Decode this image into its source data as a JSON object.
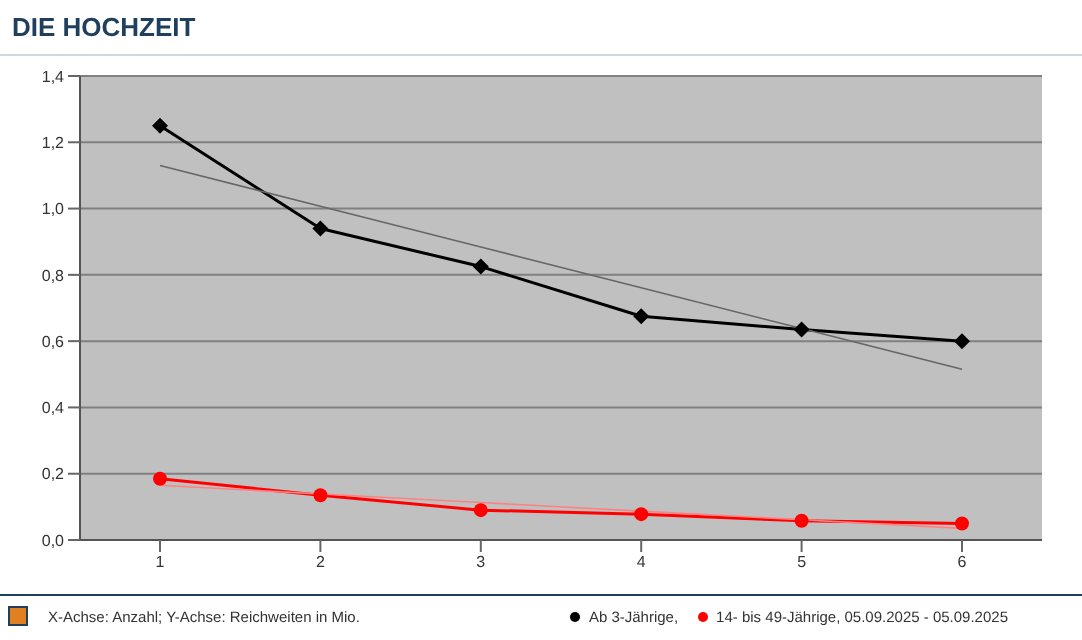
{
  "chart_data": {
    "type": "line",
    "title": "DIE HOCHZEIT",
    "annotations": [
      "X-Achse: Anzahl; Y-Achse: Reichweiten in Mio."
    ],
    "categories": [
      "1",
      "2",
      "3",
      "4",
      "5",
      "6"
    ],
    "series": [
      {
        "name": "Ab 3-Jährige,",
        "color": "#000000",
        "marker": "diamond",
        "values": [
          1.25,
          0.94,
          0.825,
          0.675,
          0.635,
          0.6
        ]
      },
      {
        "name": "14- bis 49-Jährige, 05.09.2025 - 05.09.2025",
        "color": "#ff0000",
        "marker": "circle",
        "values": [
          0.185,
          0.135,
          0.09,
          0.078,
          0.058,
          0.05
        ]
      },
      {
        "color": "#666666",
        "marker": "none",
        "values": [
          1.13,
          1.007,
          0.884,
          0.761,
          0.638,
          0.515
        ]
      },
      {
        "color": "#ff8080",
        "marker": "none",
        "values": [
          0.165,
          0.139,
          0.113,
          0.087,
          0.061,
          0.035
        ]
      }
    ],
    "ylim": [
      0,
      1.4
    ],
    "yticks": [
      {
        "value": 0,
        "label": "0,0"
      },
      {
        "value": 0.2,
        "label": "0,2"
      },
      {
        "value": 0.4,
        "label": "0,4"
      },
      {
        "value": 0.6,
        "label": "0,6"
      },
      {
        "value": 0.8,
        "label": "0,8"
      },
      {
        "value": 1.0,
        "label": "1,0"
      },
      {
        "value": 1.2,
        "label": "1,2"
      },
      {
        "value": 1.4,
        "label": "1,4"
      }
    ],
    "grid": "y",
    "legend": "bottom"
  }
}
